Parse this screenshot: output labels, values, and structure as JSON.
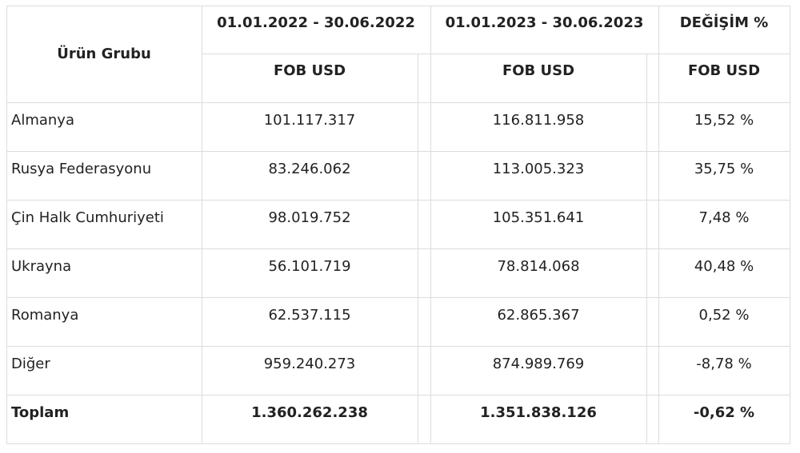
{
  "table": {
    "header": {
      "group_label": "Ürün Grubu",
      "period1": "01.01.2022 - 30.06.2022",
      "period2": "01.01.2023 - 30.06.2023",
      "change": "DEĞİŞİM %",
      "unit1": "FOB USD",
      "unit2": "FOB USD",
      "unit3": "FOB USD"
    },
    "rows": [
      {
        "name": "Almanya",
        "v2022": "101.117.317",
        "v2023": "116.811.958",
        "change": "15,52 %"
      },
      {
        "name": "Rusya Federasyonu",
        "v2022": "83.246.062",
        "v2023": "113.005.323",
        "change": "35,75 %"
      },
      {
        "name": "Çin Halk Cumhuriyeti",
        "v2022": "98.019.752",
        "v2023": "105.351.641",
        "change": "7,48 %"
      },
      {
        "name": "Ukrayna",
        "v2022": "56.101.719",
        "v2023": "78.814.068",
        "change": "40,48 %"
      },
      {
        "name": "Romanya",
        "v2022": "62.537.115",
        "v2023": "62.865.367",
        "change": "0,52 %"
      },
      {
        "name": "Diğer",
        "v2022": "959.240.273",
        "v2023": "874.989.769",
        "change": "-8,78 %"
      }
    ],
    "total": {
      "name": "Toplam",
      "v2022": "1.360.262.238",
      "v2023": "1.351.838.126",
      "change": "-0,62 %"
    }
  }
}
